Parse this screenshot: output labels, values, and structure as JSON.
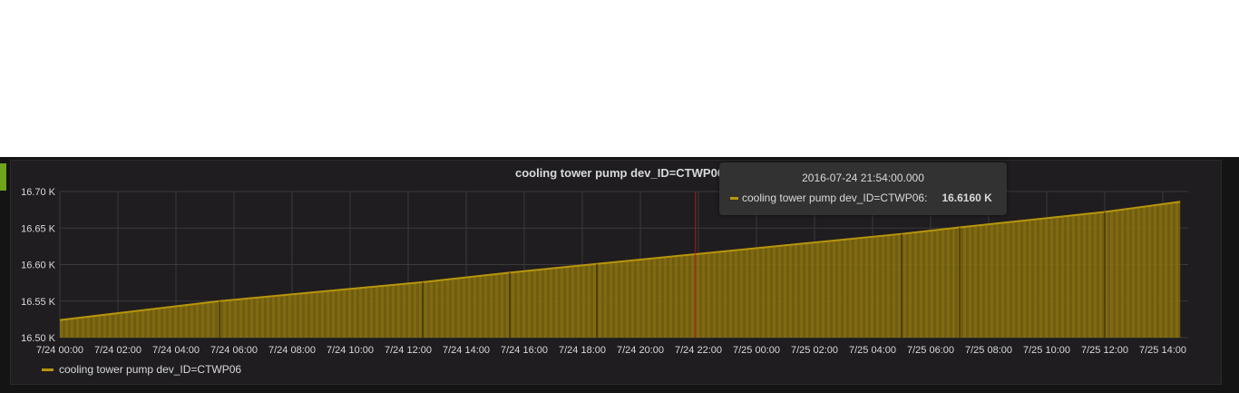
{
  "panel": {
    "title": "cooling tower pump dev_ID=CTWP06"
  },
  "tooltip": {
    "time": "2016-07-24 21:54:00.000",
    "series": "cooling tower pump dev_ID=CTWP06:",
    "value": "16.6160 K"
  },
  "colors": {
    "series": "#b8960c",
    "hover_line": "#b01c1c",
    "accent": "#6ea51b"
  },
  "chart_data": {
    "type": "area",
    "title": "cooling tower pump dev_ID=CTWP06",
    "x_ticks": [
      "7/24 00:00",
      "7/24 02:00",
      "7/24 04:00",
      "7/24 06:00",
      "7/24 08:00",
      "7/24 10:00",
      "7/24 12:00",
      "7/24 14:00",
      "7/24 16:00",
      "7/24 18:00",
      "7/24 20:00",
      "7/24 22:00",
      "7/25 00:00",
      "7/25 02:00",
      "7/25 04:00",
      "7/25 06:00",
      "7/25 08:00",
      "7/25 10:00",
      "7/25 12:00",
      "7/25 14:00"
    ],
    "y_ticks": [
      "16.50 K",
      "16.55 K",
      "16.60 K",
      "16.65 K",
      "16.70 K"
    ],
    "ylim": [
      16.5,
      16.7
    ],
    "xlim_hours": [
      0,
      39
    ],
    "grid": true,
    "legend_position": "bottom-left",
    "series": [
      {
        "name": "cooling tower pump dev_ID=CTWP06",
        "x_hours": [
          0,
          5.5,
          12.5,
          15.5,
          18.5,
          29.0,
          31.0,
          36.0,
          38.6
        ],
        "values": [
          16.524,
          16.55,
          16.576,
          16.589,
          16.601,
          16.642,
          16.651,
          16.672,
          16.686
        ]
      }
    ],
    "hover_x_hours": 21.9
  }
}
